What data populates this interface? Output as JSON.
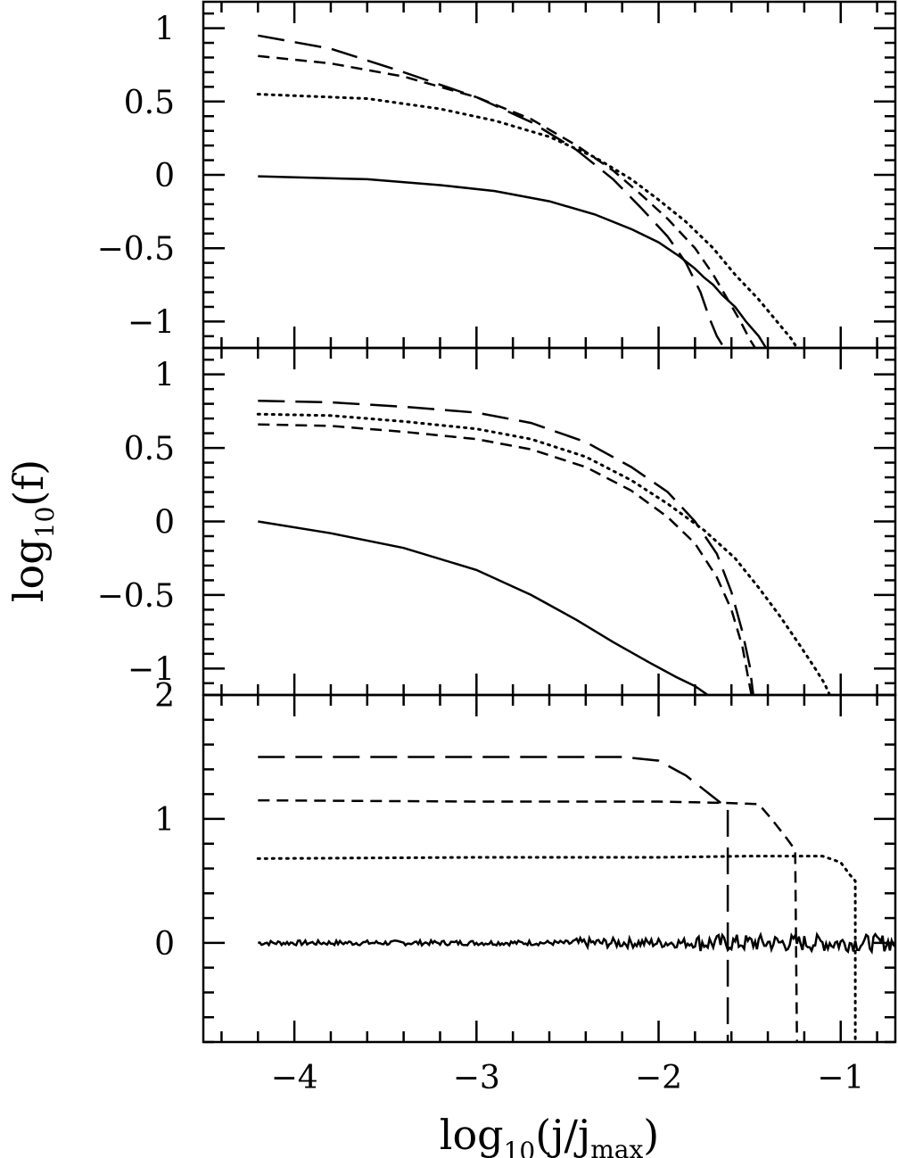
{
  "chart_data": [
    {
      "panel": "top",
      "type": "line",
      "ylim": [
        -1.18,
        1.18
      ],
      "xlim": [
        -4.5,
        -0.7
      ],
      "yticks": [
        1,
        0.5,
        0,
        -0.5,
        -1
      ],
      "ytick_labels": [
        "1",
        "0.5",
        "0",
        "−0.5",
        "−1"
      ],
      "series": [
        {
          "style": "solid",
          "points": [
            [
              -4.2,
              -0.01
            ],
            [
              -3.6,
              -0.03
            ],
            [
              -3.2,
              -0.07
            ],
            [
              -2.9,
              -0.11
            ],
            [
              -2.6,
              -0.18
            ],
            [
              -2.35,
              -0.27
            ],
            [
              -2.15,
              -0.37
            ],
            [
              -2.0,
              -0.46
            ],
            [
              -1.88,
              -0.56
            ],
            [
              -1.8,
              -0.64
            ],
            [
              -1.75,
              -0.7
            ],
            [
              -1.7,
              -0.75
            ],
            [
              -1.65,
              -0.82
            ],
            [
              -1.58,
              -0.9
            ],
            [
              -1.52,
              -1.0
            ],
            [
              -1.45,
              -1.1
            ],
            [
              -1.41,
              -1.18
            ]
          ]
        },
        {
          "style": "dotted",
          "points": [
            [
              -4.2,
              0.55
            ],
            [
              -3.6,
              0.52
            ],
            [
              -3.2,
              0.45
            ],
            [
              -2.9,
              0.37
            ],
            [
              -2.6,
              0.26
            ],
            [
              -2.35,
              0.12
            ],
            [
              -2.15,
              -0.03
            ],
            [
              -2.0,
              -0.17
            ],
            [
              -1.85,
              -0.32
            ],
            [
              -1.7,
              -0.5
            ],
            [
              -1.58,
              -0.68
            ],
            [
              -1.45,
              -0.85
            ],
            [
              -1.35,
              -1.0
            ],
            [
              -1.27,
              -1.12
            ],
            [
              -1.24,
              -1.18
            ]
          ]
        },
        {
          "style": "short-dash",
          "points": [
            [
              -4.2,
              0.81
            ],
            [
              -3.8,
              0.76
            ],
            [
              -3.4,
              0.67
            ],
            [
              -3.0,
              0.53
            ],
            [
              -2.7,
              0.38
            ],
            [
              -2.45,
              0.2
            ],
            [
              -2.25,
              0.03
            ],
            [
              -2.1,
              -0.13
            ],
            [
              -1.95,
              -0.3
            ],
            [
              -1.8,
              -0.5
            ],
            [
              -1.7,
              -0.68
            ],
            [
              -1.62,
              -0.85
            ],
            [
              -1.55,
              -1.0
            ],
            [
              -1.5,
              -1.12
            ],
            [
              -1.47,
              -1.18
            ]
          ]
        },
        {
          "style": "long-dash",
          "points": [
            [
              -4.2,
              0.95
            ],
            [
              -3.8,
              0.86
            ],
            [
              -3.4,
              0.7
            ],
            [
              -3.0,
              0.53
            ],
            [
              -2.7,
              0.36
            ],
            [
              -2.45,
              0.17
            ],
            [
              -2.25,
              -0.03
            ],
            [
              -2.1,
              -0.22
            ],
            [
              -1.95,
              -0.42
            ],
            [
              -1.85,
              -0.6
            ],
            [
              -1.77,
              -0.8
            ],
            [
              -1.72,
              -0.98
            ],
            [
              -1.68,
              -1.1
            ],
            [
              -1.64,
              -1.18
            ]
          ]
        }
      ]
    },
    {
      "panel": "middle",
      "type": "line",
      "ylim": [
        -1.18,
        1.18
      ],
      "xlim": [
        -4.5,
        -0.7
      ],
      "yticks": [
        1,
        0.5,
        0,
        -0.5,
        -1
      ],
      "ytick_labels": [
        "1",
        "0.5",
        "0",
        "−0.5",
        "−1"
      ],
      "series": [
        {
          "style": "solid",
          "points": [
            [
              -4.2,
              0.0
            ],
            [
              -3.8,
              -0.08
            ],
            [
              -3.4,
              -0.18
            ],
            [
              -3.0,
              -0.33
            ],
            [
              -2.7,
              -0.5
            ],
            [
              -2.45,
              -0.67
            ],
            [
              -2.25,
              -0.82
            ],
            [
              -2.05,
              -0.96
            ],
            [
              -1.9,
              -1.06
            ],
            [
              -1.8,
              -1.12
            ],
            [
              -1.73,
              -1.18
            ]
          ]
        },
        {
          "style": "dotted",
          "points": [
            [
              -4.2,
              0.73
            ],
            [
              -3.8,
              0.72
            ],
            [
              -3.4,
              0.68
            ],
            [
              -3.0,
              0.63
            ],
            [
              -2.7,
              0.56
            ],
            [
              -2.4,
              0.44
            ],
            [
              -2.15,
              0.28
            ],
            [
              -1.95,
              0.12
            ],
            [
              -1.75,
              -0.06
            ],
            [
              -1.58,
              -0.25
            ],
            [
              -1.45,
              -0.45
            ],
            [
              -1.33,
              -0.65
            ],
            [
              -1.22,
              -0.85
            ],
            [
              -1.14,
              -1.0
            ],
            [
              -1.09,
              -1.1
            ],
            [
              -1.06,
              -1.18
            ]
          ]
        },
        {
          "style": "short-dash",
          "points": [
            [
              -4.2,
              0.66
            ],
            [
              -3.8,
              0.65
            ],
            [
              -3.4,
              0.61
            ],
            [
              -3.0,
              0.56
            ],
            [
              -2.7,
              0.49
            ],
            [
              -2.4,
              0.37
            ],
            [
              -2.15,
              0.21
            ],
            [
              -1.95,
              0.03
            ],
            [
              -1.8,
              -0.15
            ],
            [
              -1.68,
              -0.38
            ],
            [
              -1.6,
              -0.6
            ],
            [
              -1.54,
              -0.85
            ],
            [
              -1.51,
              -1.05
            ],
            [
              -1.49,
              -1.18
            ]
          ]
        },
        {
          "style": "long-dash",
          "points": [
            [
              -4.2,
              0.82
            ],
            [
              -3.8,
              0.81
            ],
            [
              -3.4,
              0.78
            ],
            [
              -3.0,
              0.74
            ],
            [
              -2.7,
              0.67
            ],
            [
              -2.4,
              0.54
            ],
            [
              -2.15,
              0.37
            ],
            [
              -1.95,
              0.2
            ],
            [
              -1.8,
              0.0
            ],
            [
              -1.68,
              -0.22
            ],
            [
              -1.6,
              -0.48
            ],
            [
              -1.54,
              -0.75
            ],
            [
              -1.5,
              -0.98
            ],
            [
              -1.48,
              -1.18
            ]
          ]
        }
      ]
    },
    {
      "panel": "bottom",
      "type": "line",
      "ylim": [
        -0.8,
        2.0
      ],
      "xlim": [
        -4.5,
        -0.7
      ],
      "yticks": [
        2,
        1,
        0
      ],
      "ytick_labels": [
        "2",
        "1",
        "0"
      ],
      "xticks": [
        -4,
        -3,
        -2,
        -1
      ],
      "xtick_labels": [
        "−4",
        "−3",
        "−2",
        "−1"
      ],
      "series": [
        {
          "style": "solid",
          "noisy": true,
          "points": [
            [
              -4.2,
              0.0
            ],
            [
              -3.6,
              0.0
            ],
            [
              -3.0,
              0.0
            ],
            [
              -2.4,
              0.0
            ],
            [
              -1.8,
              0.0
            ],
            [
              -1.2,
              0.0
            ],
            [
              -0.7,
              0.0
            ]
          ]
        },
        {
          "style": "dotted",
          "points": [
            [
              -4.2,
              0.68
            ],
            [
              -3.0,
              0.69
            ],
            [
              -2.0,
              0.69
            ],
            [
              -1.5,
              0.7
            ],
            [
              -1.1,
              0.7
            ],
            [
              -1.0,
              0.65
            ],
            [
              -0.95,
              0.55
            ],
            [
              -0.92,
              0.5
            ],
            [
              -0.92,
              -0.8
            ]
          ]
        },
        {
          "style": "short-dash",
          "points": [
            [
              -4.2,
              1.15
            ],
            [
              -3.0,
              1.14
            ],
            [
              -2.0,
              1.14
            ],
            [
              -1.65,
              1.13
            ],
            [
              -1.45,
              1.12
            ],
            [
              -1.38,
              1.0
            ],
            [
              -1.3,
              0.85
            ],
            [
              -1.25,
              0.75
            ],
            [
              -1.24,
              -0.8
            ]
          ]
        },
        {
          "style": "long-dash",
          "points": [
            [
              -4.2,
              1.5
            ],
            [
              -3.0,
              1.5
            ],
            [
              -2.2,
              1.5
            ],
            [
              -2.0,
              1.47
            ],
            [
              -1.85,
              1.35
            ],
            [
              -1.72,
              1.2
            ],
            [
              -1.65,
              1.12
            ],
            [
              -1.62,
              1.09
            ],
            [
              -1.62,
              -0.8
            ]
          ]
        }
      ]
    }
  ],
  "axes": {
    "ylabel_main": "log",
    "ylabel_sub": "10",
    "ylabel_arg": "(f)",
    "xlabel_main": "log",
    "xlabel_sub": "10",
    "xlabel_arg_open": "(j/j",
    "xlabel_arg_sub": "max",
    "xlabel_arg_close": ")"
  }
}
